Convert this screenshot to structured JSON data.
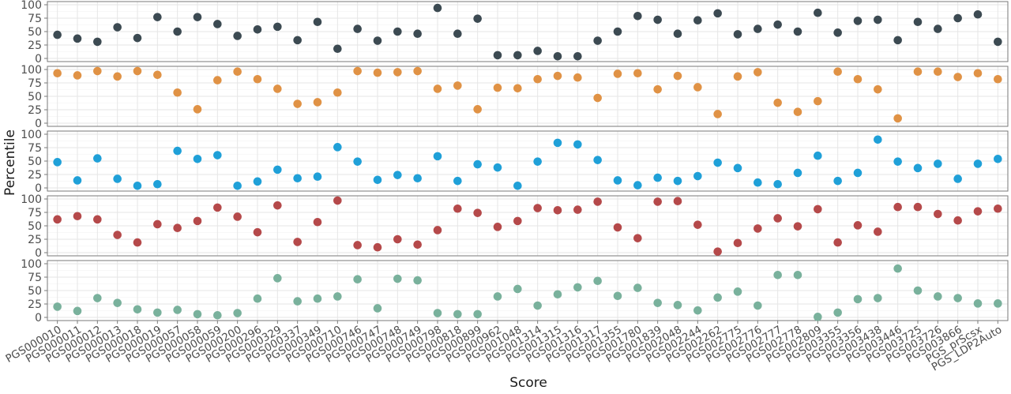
{
  "chart_data": {
    "type": "scatter",
    "xlabel": "Score",
    "ylabel": "Percentile",
    "ylim": [
      0,
      100
    ],
    "yticks": [
      0,
      25,
      50,
      75,
      100
    ],
    "grid": true,
    "categories": [
      "PGS000010",
      "PGS000011",
      "PGS000012",
      "PGS000013",
      "PGS000018",
      "PGS000019",
      "PGS000057",
      "PGS000058",
      "PGS000059",
      "PGS000200",
      "PGS000296",
      "PGS000329",
      "PGS000337",
      "PGS000349",
      "PGS000710",
      "PGS000746",
      "PGS000747",
      "PGS000748",
      "PGS000749",
      "PGS000798",
      "PGS000818",
      "PGS000899",
      "PGS000962",
      "PGS001048",
      "PGS001314",
      "PGS001315",
      "PGS001316",
      "PGS001317",
      "PGS001355",
      "PGS001780",
      "PGS001839",
      "PGS002048",
      "PGS002244",
      "PGS002262",
      "PGS002775",
      "PGS002776",
      "PGS002777",
      "PGS002778",
      "PGS002809",
      "PGS003355",
      "PGS003356",
      "PGS003438",
      "PGS003446",
      "PGS003725",
      "PGS003726",
      "PGS003866",
      "PGS_prScsx",
      "PGS_LDP2Auto"
    ],
    "series": [
      {
        "color": "#3c4a52",
        "values": [
          44,
          37,
          31,
          58,
          38,
          77,
          50,
          77,
          64,
          42,
          54,
          59,
          34,
          68,
          18,
          55,
          33,
          50,
          46,
          94,
          46,
          74,
          6,
          6,
          14,
          4,
          4,
          33,
          50,
          79,
          72,
          46,
          71,
          84,
          45,
          55,
          63,
          50,
          85,
          48,
          70,
          72,
          34,
          68,
          55,
          75,
          82,
          31
        ]
      },
      {
        "color": "#e09245",
        "values": [
          93,
          89,
          97,
          87,
          97,
          90,
          57,
          26,
          80,
          96,
          82,
          64,
          36,
          39,
          57,
          97,
          94,
          95,
          97,
          64,
          70,
          26,
          66,
          65,
          82,
          88,
          85,
          47,
          92,
          93,
          63,
          88,
          67,
          17,
          87,
          95,
          38,
          21,
          41,
          96,
          82,
          63,
          9,
          96,
          96,
          86,
          93,
          82
        ]
      },
      {
        "color": "#1fa0d8",
        "values": [
          48,
          14,
          55,
          17,
          4,
          7,
          69,
          54,
          61,
          4,
          12,
          34,
          18,
          21,
          76,
          49,
          15,
          24,
          18,
          59,
          13,
          44,
          38,
          4,
          49,
          84,
          81,
          52,
          14,
          5,
          19,
          13,
          22,
          47,
          37,
          10,
          7,
          28,
          60,
          13,
          28,
          90,
          49,
          37,
          45,
          17,
          45,
          54
        ]
      },
      {
        "color": "#b5494a",
        "values": [
          62,
          68,
          62,
          33,
          19,
          53,
          46,
          59,
          84,
          67,
          38,
          88,
          20,
          57,
          97,
          14,
          10,
          25,
          15,
          42,
          82,
          74,
          48,
          59,
          83,
          79,
          80,
          95,
          47,
          27,
          95,
          96,
          52,
          2,
          18,
          45,
          64,
          49,
          81,
          19,
          51,
          39,
          85,
          85,
          72,
          60,
          77,
          82
        ]
      },
      {
        "color": "#79b19c",
        "values": [
          20,
          12,
          36,
          27,
          15,
          9,
          14,
          6,
          4,
          8,
          35,
          73,
          30,
          35,
          39,
          71,
          17,
          72,
          69,
          8,
          6,
          6,
          39,
          53,
          22,
          43,
          56,
          68,
          40,
          55,
          27,
          23,
          13,
          37,
          48,
          22,
          79,
          79,
          1,
          9,
          34,
          36,
          91,
          50,
          39,
          36,
          26,
          26
        ]
      }
    ]
  }
}
